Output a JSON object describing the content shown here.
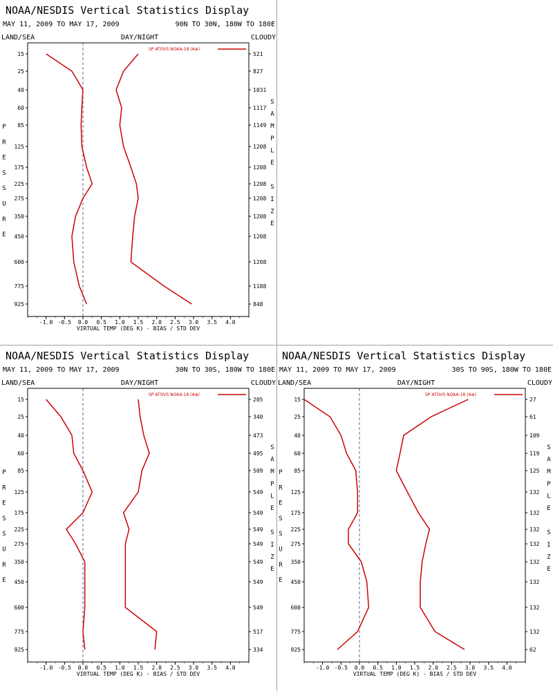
{
  "chart_data": [
    {
      "type": "line",
      "title": "NOAA/NESDIS Vertical Statistics Display",
      "dates": "MAY 11, 2009 TO MAY 17, 2009",
      "region": "90N TO 30N, 180W TO 180E",
      "left_header": "LAND/SEA",
      "center_header": "DAY/NIGHT",
      "right_header": "CLOUDY",
      "xlabel": "VIRTUAL TEMP (DEG K) - BIAS / STD DEV",
      "ylabel": "PRESSURE",
      "y2label": "SAMPLE SIZE",
      "legend": "SP ATOVS NOAA-18 (A⊕)",
      "legend_shown": true,
      "xlim": [
        -1.5,
        4.5
      ],
      "xticks": [
        "-1.0",
        "-0.5",
        "0.0",
        "0.5",
        "1.0",
        "1.5",
        "2.0",
        "2.5",
        "3.0",
        "3.5",
        "4.0"
      ],
      "pressure_levels": [
        "15",
        "25",
        "40",
        "60",
        "85",
        "125",
        "175",
        "225",
        "275",
        "350",
        "450",
        "600",
        "775",
        "925"
      ],
      "sample_size": [
        "521",
        "827",
        "1031",
        "1117",
        "1149",
        "1208",
        "1208",
        "1208",
        "1208",
        "1208",
        "1208",
        "1208",
        "1188",
        "848"
      ],
      "bias": [
        -1.0,
        -0.3,
        0.0,
        -0.03,
        -0.05,
        -0.03,
        0.1,
        0.25,
        0.0,
        -0.2,
        -0.3,
        -0.25,
        -0.1,
        0.1
      ],
      "std_dev": [
        1.5,
        1.1,
        0.9,
        1.05,
        1.0,
        1.1,
        1.3,
        1.45,
        1.5,
        1.4,
        1.35,
        1.3,
        2.2,
        2.95
      ],
      "line_color": "#cc0000"
    },
    {
      "type": "line",
      "title": "NOAA/NESDIS Vertical Statistics Display",
      "dates": "MAY 11, 2009 TO MAY 17, 2009",
      "region": "30N TO 30S, 180W TO 180E",
      "left_header": "LAND/SEA",
      "center_header": "DAY/NIGHT",
      "right_header": "CLOUDY",
      "xlabel": "VIRTUAL TEMP (DEG K) - BIAS / STD DEV",
      "ylabel": "PRESSURE",
      "y2label": "SAMPLE SIZE",
      "legend": "SP ATOVS NOAA-18 (A⊕)",
      "legend_shown": true,
      "xlim": [
        -1.5,
        4.5
      ],
      "xticks": [
        "-1.0",
        "-0.5",
        "0.0",
        "0.5",
        "1.0",
        "1.5",
        "2.0",
        "2.5",
        "3.0",
        "3.5",
        "4.0"
      ],
      "pressure_levels": [
        "15",
        "25",
        "40",
        "60",
        "85",
        "125",
        "175",
        "225",
        "275",
        "350",
        "450",
        "600",
        "775",
        "925"
      ],
      "sample_size": [
        "205",
        "340",
        "473",
        "495",
        "509",
        "549",
        "549",
        "549",
        "549",
        "549",
        "549",
        "549",
        "517",
        "334"
      ],
      "bias": [
        -1.0,
        -0.6,
        -0.3,
        -0.25,
        0.0,
        0.25,
        0.0,
        -0.45,
        -0.2,
        0.05,
        0.05,
        0.05,
        0.0,
        0.05
      ],
      "std_dev": [
        1.5,
        1.55,
        1.65,
        1.8,
        1.6,
        1.5,
        1.1,
        1.25,
        1.15,
        1.15,
        1.15,
        1.15,
        2.0,
        1.95
      ],
      "line_color": "#cc0000"
    },
    {
      "type": "line",
      "title": "NOAA/NESDIS Vertical Statistics Display",
      "dates": "MAY 11, 2009 TO MAY 17, 2009",
      "region": "30S TO 90S, 180W TO 180E",
      "left_header": "LAND/SEA",
      "center_header": "DAY/NIGHT",
      "right_header": "CLOUDY",
      "xlabel": "VIRTUAL TEMP (DEG K) - BIAS / STD DEV",
      "ylabel": "PRESSURE",
      "y2label": "SAMPLE SIZE",
      "legend": "SP ATOVS NOAA-18 (A⊕)",
      "legend_shown": true,
      "xlim": [
        -1.5,
        4.5
      ],
      "xticks": [
        "-1.0",
        "-0.5",
        "0.0",
        "0.5",
        "1.0",
        "1.5",
        "2.0",
        "2.5",
        "3.0",
        "3.5",
        "4.0"
      ],
      "pressure_levels": [
        "15",
        "25",
        "40",
        "60",
        "85",
        "125",
        "175",
        "225",
        "275",
        "350",
        "450",
        "600",
        "775",
        "925"
      ],
      "sample_size": [
        "27",
        "61",
        "109",
        "119",
        "125",
        "132",
        "132",
        "132",
        "132",
        "132",
        "132",
        "132",
        "132",
        "62"
      ],
      "bias": [
        -1.5,
        -0.8,
        -0.5,
        -0.35,
        -0.1,
        -0.05,
        -0.05,
        -0.3,
        -0.3,
        0.05,
        0.2,
        0.25,
        -0.05,
        -0.6
      ],
      "std_dev": [
        2.95,
        1.95,
        1.2,
        1.1,
        1.0,
        1.3,
        1.6,
        1.9,
        1.8,
        1.7,
        1.65,
        1.65,
        2.05,
        2.85
      ],
      "line_color": "#cc0000"
    }
  ]
}
